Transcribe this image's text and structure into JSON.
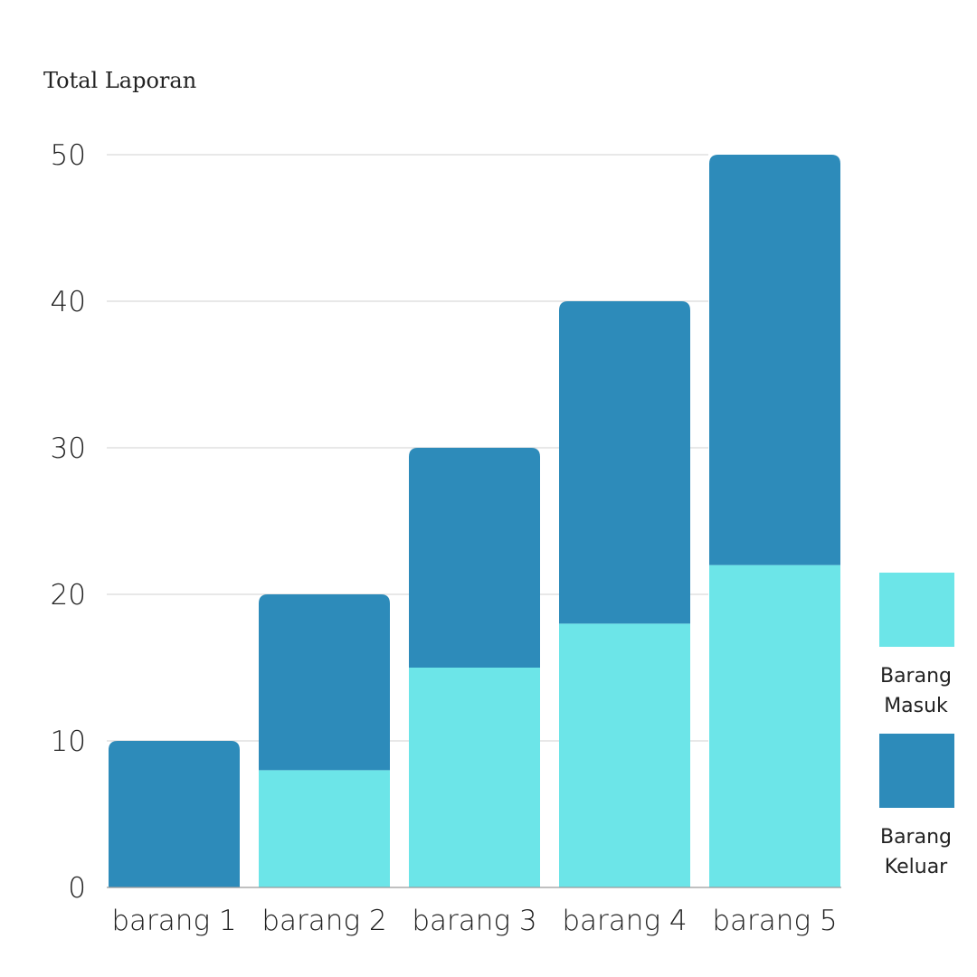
{
  "chart_data": {
    "type": "bar",
    "stacked": true,
    "title": "Total Laporan",
    "xlabel": "",
    "ylabel": "",
    "categories": [
      "barang 1",
      "barang 2",
      "barang 3",
      "barang 4",
      "barang 5"
    ],
    "series": [
      {
        "name": "Barang Masuk",
        "color": "#6ce5e8",
        "values": [
          0,
          8,
          15,
          18,
          22
        ]
      },
      {
        "name": "Barang Keluar",
        "color": "#2d8bba",
        "values": [
          10,
          12,
          15,
          22,
          28
        ]
      }
    ],
    "ylim": [
      0,
      50
    ],
    "yticks": [
      0,
      10,
      20,
      30,
      40,
      50
    ],
    "grid": true,
    "legend_position": "right"
  }
}
